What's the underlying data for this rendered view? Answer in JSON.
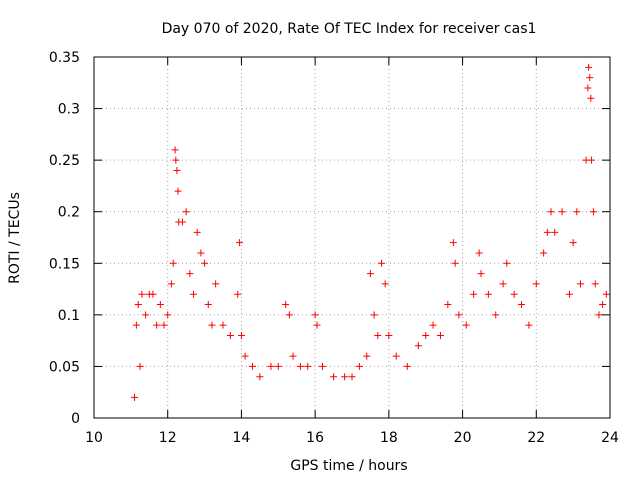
{
  "chart_data": {
    "type": "scatter",
    "title": "Day 070 of 2020, Rate Of TEC Index for receiver cas1",
    "xlabel": "GPS time / hours",
    "ylabel": "ROTI / TECUs",
    "xlim": [
      10,
      24
    ],
    "ylim": [
      0,
      0.35
    ],
    "x_ticks": [
      "10",
      "12",
      "14",
      "16",
      "18",
      "20",
      "22",
      "24"
    ],
    "y_ticks": [
      "0",
      "0.05",
      "0.1",
      "0.15",
      "0.2",
      "0.25",
      "0.3",
      "0.35"
    ],
    "grid": true,
    "legend": "none",
    "marker": "plus",
    "series": [
      {
        "color": "#ff0000",
        "points": [
          [
            11.1,
            0.02
          ],
          [
            11.15,
            0.09
          ],
          [
            11.2,
            0.11
          ],
          [
            11.25,
            0.05
          ],
          [
            11.3,
            0.12
          ],
          [
            11.4,
            0.1
          ],
          [
            11.5,
            0.12
          ],
          [
            11.6,
            0.12
          ],
          [
            11.7,
            0.09
          ],
          [
            11.8,
            0.11
          ],
          [
            11.9,
            0.09
          ],
          [
            12.0,
            0.1
          ],
          [
            12.1,
            0.13
          ],
          [
            12.15,
            0.15
          ],
          [
            12.2,
            0.26
          ],
          [
            12.22,
            0.25
          ],
          [
            12.25,
            0.24
          ],
          [
            12.28,
            0.22
          ],
          [
            12.3,
            0.19
          ],
          [
            12.4,
            0.19
          ],
          [
            12.5,
            0.2
          ],
          [
            12.6,
            0.14
          ],
          [
            12.7,
            0.12
          ],
          [
            12.8,
            0.18
          ],
          [
            12.9,
            0.16
          ],
          [
            13.0,
            0.15
          ],
          [
            13.1,
            0.11
          ],
          [
            13.2,
            0.09
          ],
          [
            13.3,
            0.13
          ],
          [
            13.5,
            0.09
          ],
          [
            13.7,
            0.08
          ],
          [
            13.9,
            0.12
          ],
          [
            13.95,
            0.17
          ],
          [
            14.0,
            0.08
          ],
          [
            14.1,
            0.06
          ],
          [
            14.3,
            0.05
          ],
          [
            14.5,
            0.04
          ],
          [
            14.8,
            0.05
          ],
          [
            15.0,
            0.05
          ],
          [
            15.2,
            0.11
          ],
          [
            15.3,
            0.1
          ],
          [
            15.4,
            0.06
          ],
          [
            15.6,
            0.05
          ],
          [
            15.8,
            0.05
          ],
          [
            16.0,
            0.1
          ],
          [
            16.05,
            0.09
          ],
          [
            16.2,
            0.05
          ],
          [
            16.5,
            0.04
          ],
          [
            16.8,
            0.04
          ],
          [
            17.0,
            0.04
          ],
          [
            17.2,
            0.05
          ],
          [
            17.4,
            0.06
          ],
          [
            17.5,
            0.14
          ],
          [
            17.6,
            0.1
          ],
          [
            17.7,
            0.08
          ],
          [
            17.8,
            0.15
          ],
          [
            17.9,
            0.13
          ],
          [
            18.0,
            0.08
          ],
          [
            18.2,
            0.06
          ],
          [
            18.5,
            0.05
          ],
          [
            18.8,
            0.07
          ],
          [
            19.0,
            0.08
          ],
          [
            19.2,
            0.09
          ],
          [
            19.4,
            0.08
          ],
          [
            19.6,
            0.11
          ],
          [
            19.75,
            0.17
          ],
          [
            19.8,
            0.15
          ],
          [
            19.9,
            0.1
          ],
          [
            20.1,
            0.09
          ],
          [
            20.3,
            0.12
          ],
          [
            20.45,
            0.16
          ],
          [
            20.5,
            0.14
          ],
          [
            20.7,
            0.12
          ],
          [
            20.9,
            0.1
          ],
          [
            21.1,
            0.13
          ],
          [
            21.2,
            0.15
          ],
          [
            21.4,
            0.12
          ],
          [
            21.6,
            0.11
          ],
          [
            21.8,
            0.09
          ],
          [
            22.0,
            0.13
          ],
          [
            22.2,
            0.16
          ],
          [
            22.3,
            0.18
          ],
          [
            22.4,
            0.2
          ],
          [
            22.5,
            0.18
          ],
          [
            22.7,
            0.2
          ],
          [
            22.9,
            0.12
          ],
          [
            23.0,
            0.17
          ],
          [
            23.1,
            0.2
          ],
          [
            23.2,
            0.13
          ],
          [
            23.35,
            0.25
          ],
          [
            23.4,
            0.32
          ],
          [
            23.42,
            0.34
          ],
          [
            23.45,
            0.33
          ],
          [
            23.48,
            0.31
          ],
          [
            23.5,
            0.25
          ],
          [
            23.55,
            0.2
          ],
          [
            23.6,
            0.13
          ],
          [
            23.7,
            0.1
          ],
          [
            23.8,
            0.11
          ],
          [
            23.9,
            0.12
          ]
        ]
      }
    ]
  }
}
